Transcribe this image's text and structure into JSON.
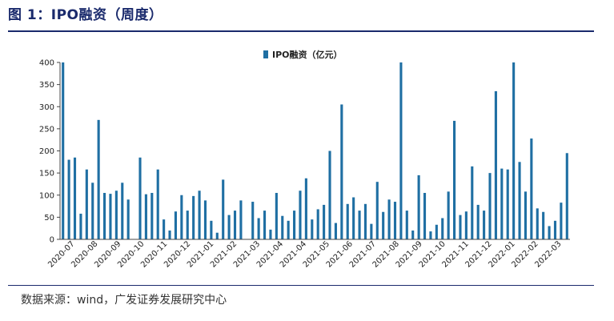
{
  "figure": {
    "title": "图 1：IPO融资（周度）",
    "source": "数据来源：wind，广发证券发展研究中心"
  },
  "colors": {
    "bar": "#1f6fa3",
    "accent": "#1a2a6c"
  },
  "chart_data": {
    "type": "bar",
    "title": "",
    "xlabel": "",
    "ylabel": "",
    "ylim": [
      0,
      400
    ],
    "yticks": [
      0,
      50,
      100,
      150,
      200,
      250,
      300,
      350,
      400
    ],
    "legend": "top-center",
    "grid": false,
    "x_tick_labels": [
      "2020-07",
      "2020-08",
      "2020-09",
      "2020-10",
      "2020-11",
      "2020-12",
      "2021-01",
      "2021-02",
      "2021-03",
      "2021-04",
      "2021-04",
      "2021-05",
      "2021-06",
      "2021-07",
      "2021-08",
      "2021-09",
      "2021-10",
      "2021-11",
      "2021-12",
      "2022-01",
      "2022-02",
      "2022-03"
    ],
    "series": [
      {
        "name": "IPO融资（亿元）",
        "values": [
          400,
          180,
          185,
          58,
          158,
          128,
          270,
          105,
          103,
          110,
          128,
          90,
          0,
          185,
          102,
          105,
          158,
          45,
          20,
          63,
          100,
          65,
          98,
          110,
          88,
          42,
          15,
          135,
          55,
          65,
          88,
          0,
          85,
          48,
          65,
          22,
          105,
          53,
          42,
          65,
          110,
          138,
          45,
          68,
          78,
          200,
          37,
          305,
          80,
          95,
          65,
          80,
          35,
          130,
          62,
          90,
          85,
          400,
          65,
          20,
          145,
          105,
          18,
          33,
          48,
          108,
          268,
          55,
          63,
          165,
          78,
          65,
          150,
          335,
          160,
          158,
          400,
          175,
          108,
          228,
          70,
          62,
          30,
          42,
          83,
          195
        ]
      }
    ]
  }
}
